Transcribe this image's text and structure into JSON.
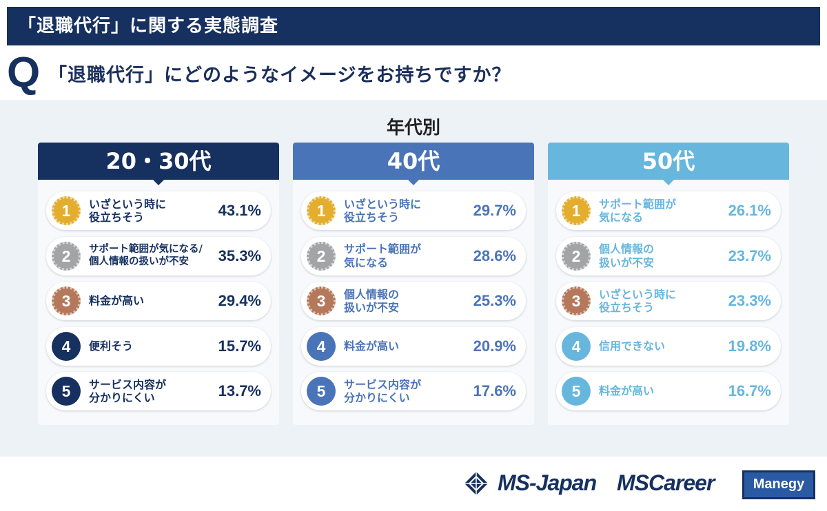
{
  "header": {
    "title": "「退職代行」に関する実態調査",
    "question_mark": "Q",
    "question": "「退職代行」にどのようなイメージをお持ちですか？"
  },
  "chart_data": {
    "type": "table",
    "title": "年代別",
    "colors": {
      "g1": "#16305f",
      "g2": "#4a74b8",
      "g3": "#67b6de",
      "gold": "#e3ad2f",
      "silver": "#a3a4a5",
      "bronze": "#b5785a"
    },
    "groups": [
      {
        "name": "20・30代",
        "items": [
          {
            "rank": "1",
            "label": "いざという時に\n役立ちそう",
            "value": "43.1%"
          },
          {
            "rank": "2",
            "label": "サポート範囲が気になる/\n個人情報の扱いが不安",
            "value": "35.3%"
          },
          {
            "rank": "3",
            "label": "料金が高い",
            "value": "29.4%"
          },
          {
            "rank": "4",
            "label": "便利そう",
            "value": "15.7%"
          },
          {
            "rank": "5",
            "label": "サービス内容が\n分かりにくい",
            "value": "13.7%"
          }
        ]
      },
      {
        "name": "40代",
        "items": [
          {
            "rank": "1",
            "label": "いざという時に\n役立ちそう",
            "value": "29.7%"
          },
          {
            "rank": "2",
            "label": "サポート範囲が\n気になる",
            "value": "28.6%"
          },
          {
            "rank": "3",
            "label": "個人情報の\n扱いが不安",
            "value": "25.3%"
          },
          {
            "rank": "4",
            "label": "料金が高い",
            "value": "20.9%"
          },
          {
            "rank": "5",
            "label": "サービス内容が\n分かりにくい",
            "value": "17.6%"
          }
        ]
      },
      {
        "name": "50代",
        "items": [
          {
            "rank": "1",
            "label": "サポート範囲が\n気になる",
            "value": "26.1%"
          },
          {
            "rank": "2",
            "label": "個人情報の\n扱いが不安",
            "value": "23.7%"
          },
          {
            "rank": "3",
            "label": "いざという時に\n役立ちそう",
            "value": "23.3%"
          },
          {
            "rank": "4",
            "label": "信用できない",
            "value": "19.8%"
          },
          {
            "rank": "5",
            "label": "料金が高い",
            "value": "16.7%"
          }
        ]
      }
    ]
  },
  "footer": {
    "logo_1": "MS-Japan",
    "logo_2": "MSCareer",
    "logo_3": "Manegy"
  }
}
